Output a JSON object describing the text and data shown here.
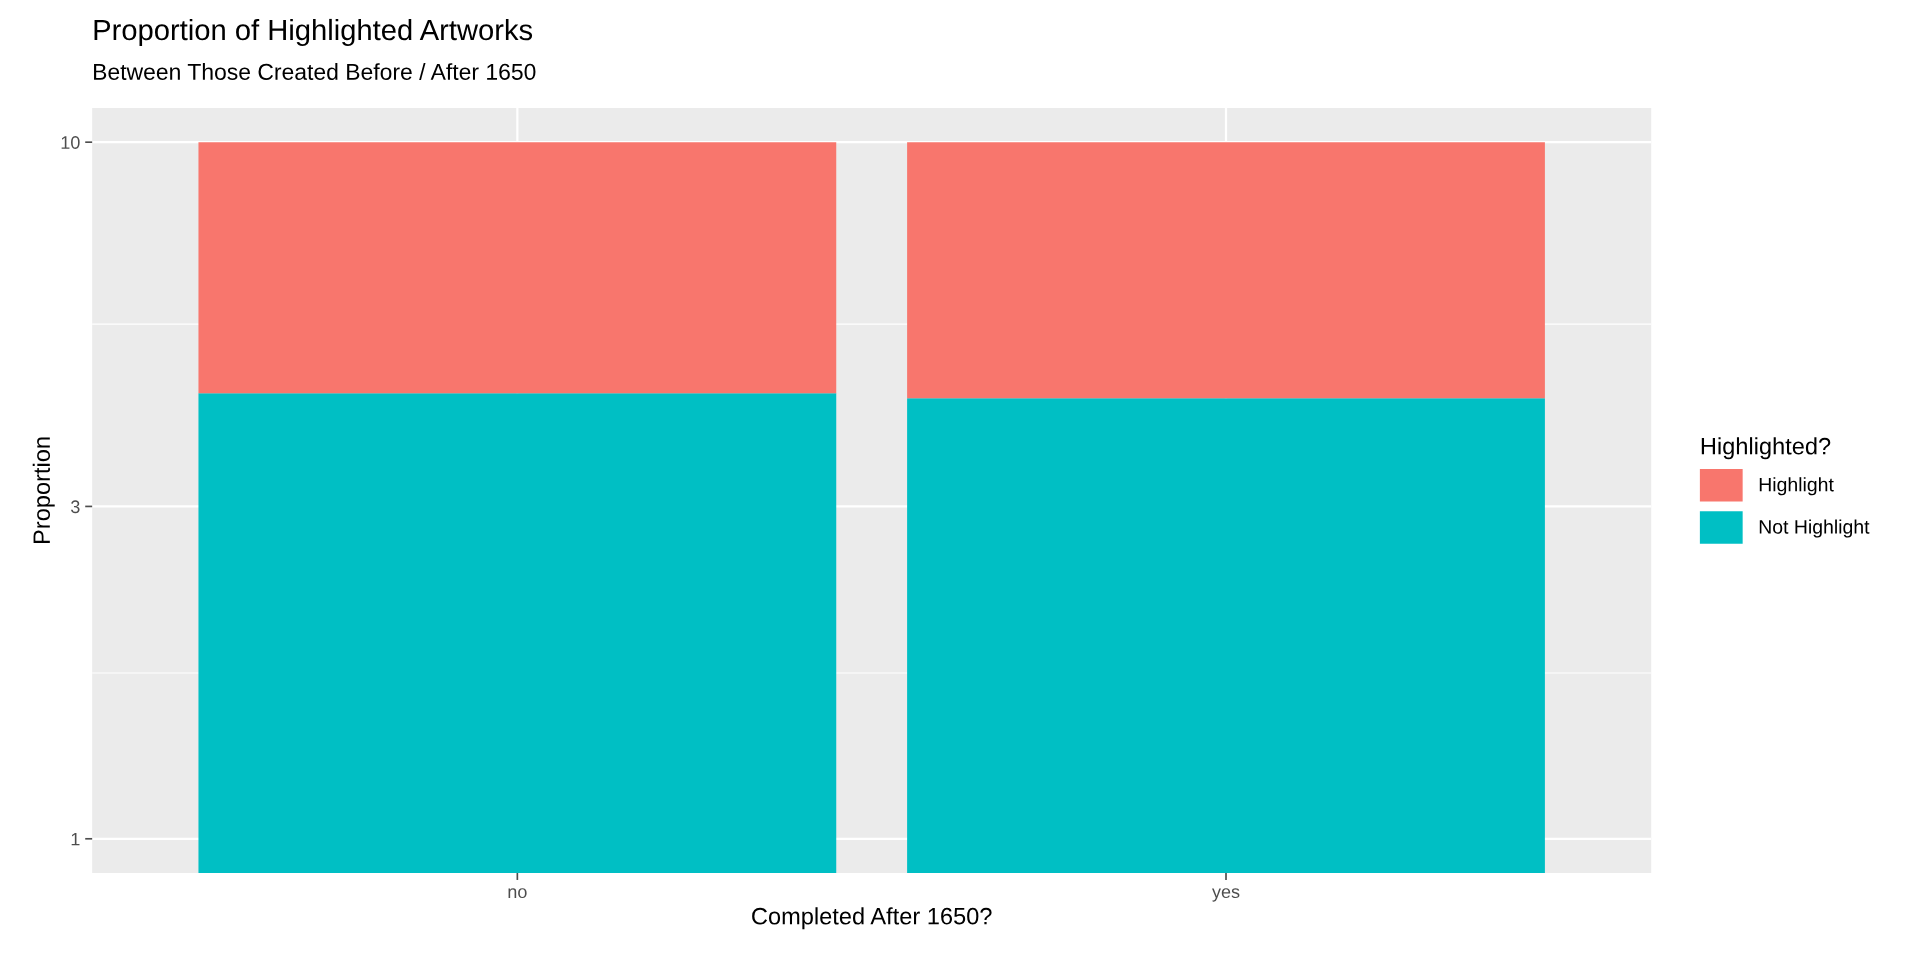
{
  "chart_data": {
    "type": "bar",
    "title": "Proportion of Highlighted Artworks",
    "subtitle": "Between Those Created Before / After 1650",
    "xlabel": "Completed After 1650?",
    "ylabel": "Proportion",
    "legend_title": "Highlighted?",
    "categories": [
      "no",
      "yes"
    ],
    "stacked": true,
    "series": [
      {
        "name": "Not Highlight",
        "color": "#00bfc4",
        "values": [
          4.36,
          4.29
        ]
      },
      {
        "name": "Highlight",
        "color": "#f8766d",
        "values": [
          5.64,
          5.71
        ]
      }
    ],
    "log": "y",
    "ylim": [
      0.893,
      11.2
    ],
    "yticks": [
      1,
      {
        "value": 1.73,
        "label": null
      },
      3,
      {
        "value": 5.48,
        "label": null
      },
      10
    ],
    "grid": true,
    "legend": "right"
  }
}
